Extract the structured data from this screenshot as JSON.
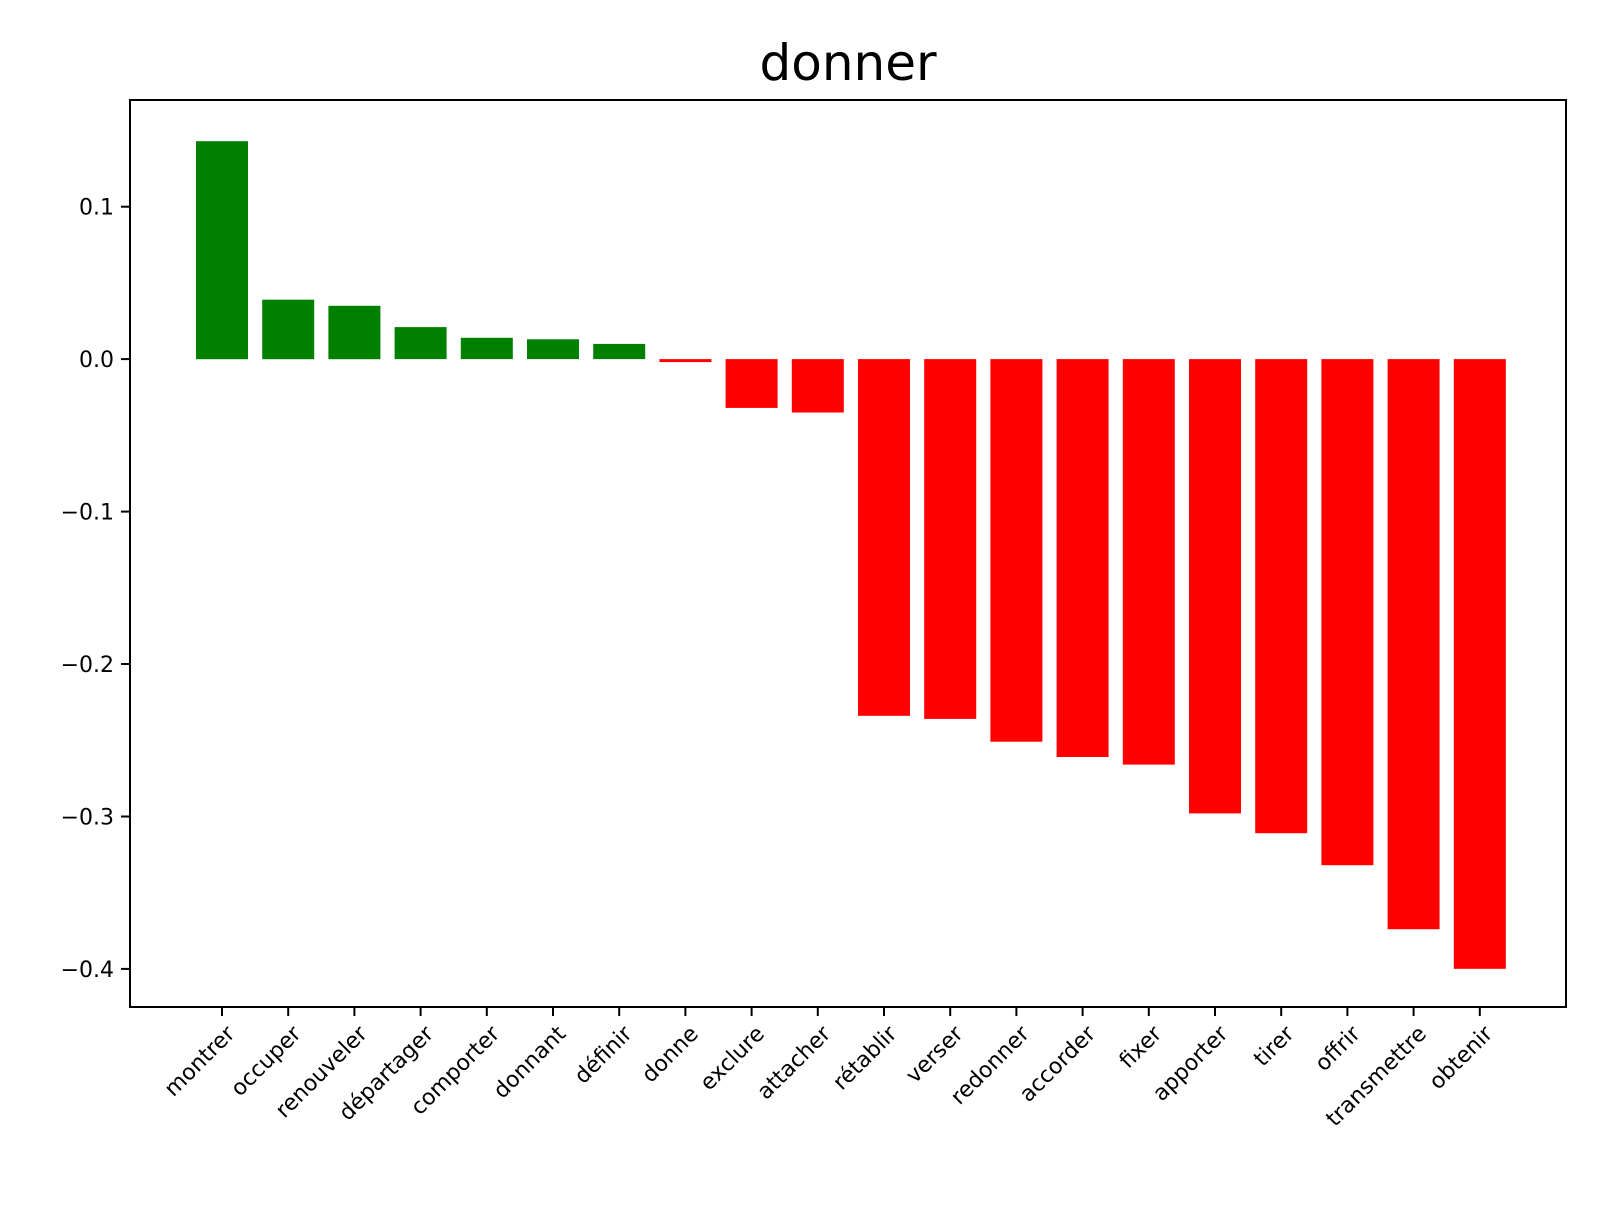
{
  "chart_data": {
    "type": "bar",
    "title": "donner",
    "xlabel": "",
    "ylabel": "",
    "categories": [
      "montrer",
      "occuper",
      "renouveler",
      "départager",
      "comporter",
      "donnant",
      "définir",
      "donne",
      "exclure",
      "attacher",
      "rétablir",
      "verser",
      "redonner",
      "accorder",
      "fixer",
      "apporter",
      "tirer",
      "offrir",
      "transmettre",
      "obtenir"
    ],
    "values": [
      0.143,
      0.039,
      0.035,
      0.021,
      0.014,
      0.013,
      0.01,
      -0.002,
      -0.032,
      -0.035,
      -0.234,
      -0.236,
      -0.251,
      -0.261,
      -0.266,
      -0.298,
      -0.311,
      -0.332,
      -0.374,
      -0.4
    ],
    "ylim": [
      -0.425,
      0.17
    ],
    "yticks": [
      0.1,
      0.0,
      -0.1,
      -0.2,
      -0.3,
      -0.4
    ],
    "ytick_labels": [
      "0.1",
      "0.0",
      "−0.1",
      "−0.2",
      "−0.3",
      "−0.4"
    ],
    "grid": false,
    "colors": {
      "positive": "#008000",
      "negative": "#ff0000"
    }
  }
}
